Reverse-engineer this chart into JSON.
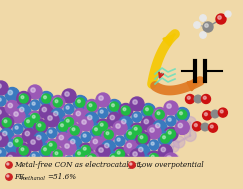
{
  "background_color": "#f0d9a8",
  "purple_dark": "#7b3fa0",
  "purple_mid": "#9b59b6",
  "purple_light": "#c090d8",
  "purple_shadow": "#c8a0d8",
  "blue_atom": "#3a7abf",
  "green_atom": "#22bb44",
  "arrow_yellow": "#f5c800",
  "arrow_orange": "#e07820",
  "arrow_cyan": "#60e0c0",
  "arrow_red": "#cc2222",
  "mol_red": "#cc1111",
  "mol_gray": "#888888",
  "mol_white": "#e8e8e8",
  "cap_color": "#111111",
  "legend_text_1": "Metal-free CON as electrocatalyst;",
  "legend_text_2_pre": "FE",
  "legend_text_2_sub": "methanol",
  "legend_text_2_post": "=51.6%",
  "legend_text_3": "Low overpotential",
  "dot_color": "#cc2222"
}
